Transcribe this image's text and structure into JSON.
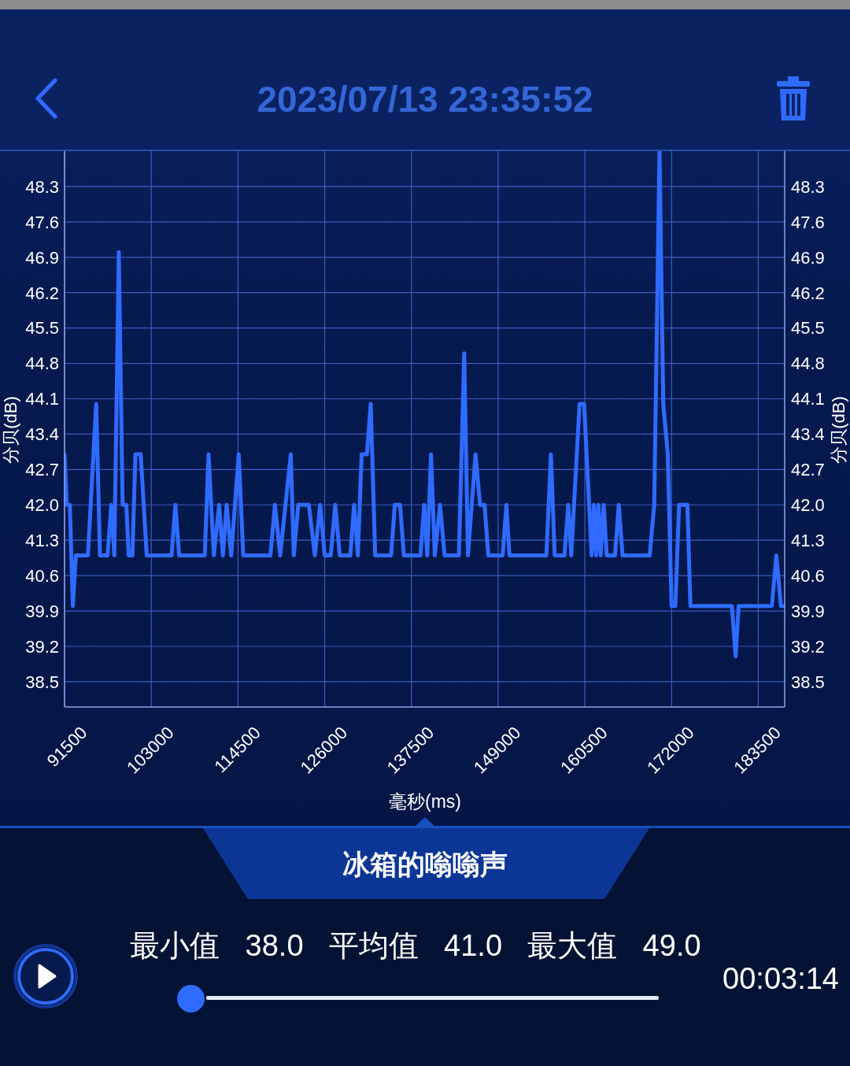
{
  "chart_data": {
    "type": "line",
    "title": "2023/07/13 23:35:52",
    "subtitle": "冰箱的嗡嗡声",
    "xlabel": "毫秒(ms)",
    "ylabel": "分贝(dB)",
    "y2label": "分贝(dB)",
    "x": [
      91500,
      91800,
      92200,
      92600,
      93000,
      94600,
      95700,
      96200,
      97200,
      97700,
      98100,
      98700,
      99200,
      99700,
      100000,
      100500,
      100900,
      101600,
      102400,
      105700,
      106200,
      106700,
      110100,
      110600,
      111300,
      112000,
      112500,
      113000,
      113600,
      114600,
      115200,
      118800,
      119400,
      120100,
      121500,
      121900,
      122500,
      123900,
      124700,
      125400,
      126000,
      126800,
      127400,
      128000,
      129400,
      129900,
      130400,
      130900,
      131600,
      132100,
      132700,
      134800,
      135300,
      136000,
      136500,
      138700,
      139200,
      139600,
      140100,
      140600,
      141300,
      141900,
      143800,
      144500,
      145000,
      146000,
      146600,
      147200,
      147700,
      149600,
      150100,
      150500,
      155400,
      156000,
      156500,
      157800,
      158300,
      158700,
      159800,
      160400,
      161400,
      161700,
      162000,
      162300,
      162600,
      163000,
      163400,
      164500,
      165000,
      165500,
      169100,
      169700,
      170400,
      170900,
      171500,
      172000,
      172500,
      173000,
      174100,
      174500,
      180000,
      180500,
      180900,
      185300,
      185900,
      186500,
      187000
    ],
    "values": [
      43,
      42,
      42,
      40,
      41,
      41,
      44,
      41,
      41,
      42,
      41,
      47,
      42,
      42,
      41,
      41,
      43,
      43,
      41,
      41,
      42,
      41,
      41,
      43,
      41,
      42,
      41,
      42,
      41,
      43,
      41,
      41,
      42,
      41,
      43,
      41,
      42,
      42,
      41,
      42,
      41,
      41,
      42,
      41,
      41,
      42,
      41,
      43,
      43,
      44,
      41,
      41,
      42,
      42,
      41,
      41,
      42,
      41,
      43,
      41,
      42,
      41,
      41,
      45,
      41,
      43,
      42,
      42,
      41,
      41,
      42,
      41,
      41,
      43,
      41,
      41,
      42,
      41,
      44,
      44,
      41,
      42,
      41,
      42,
      41,
      42,
      41,
      41,
      42,
      41,
      41,
      42,
      49,
      44,
      43,
      40,
      40,
      42,
      42,
      40,
      40,
      39,
      40,
      40,
      41,
      40,
      40
    ],
    "color": "#2f6bff",
    "line_style": "solid",
    "xlim": [
      91500,
      187000
    ],
    "xticks": [
      91500,
      103000,
      114500,
      126000,
      137500,
      149000,
      160500,
      172000,
      183500
    ],
    "ylim": [
      38,
      49
    ],
    "yticks": [
      38.5,
      39.2,
      39.9,
      40.6,
      41.3,
      {
        "value": 42,
        "label": "42.0"
      },
      42.7,
      43.4,
      44.1,
      44.8,
      45.5,
      46.2,
      46.9,
      47.6,
      48.3
    ],
    "y2lim": [
      38,
      49
    ],
    "y2ticks": [
      38.5,
      39.2,
      39.9,
      40.6,
      41.3,
      {
        "value": 42,
        "label": "42.0"
      },
      42.7,
      43.4,
      44.1,
      44.8,
      45.5,
      46.2,
      46.9,
      47.6,
      48.3
    ],
    "grid": true,
    "annotations": [
      "最小值 38.0",
      "平均值 41.0",
      "最大值 49.0",
      "00:03:14"
    ]
  }
}
